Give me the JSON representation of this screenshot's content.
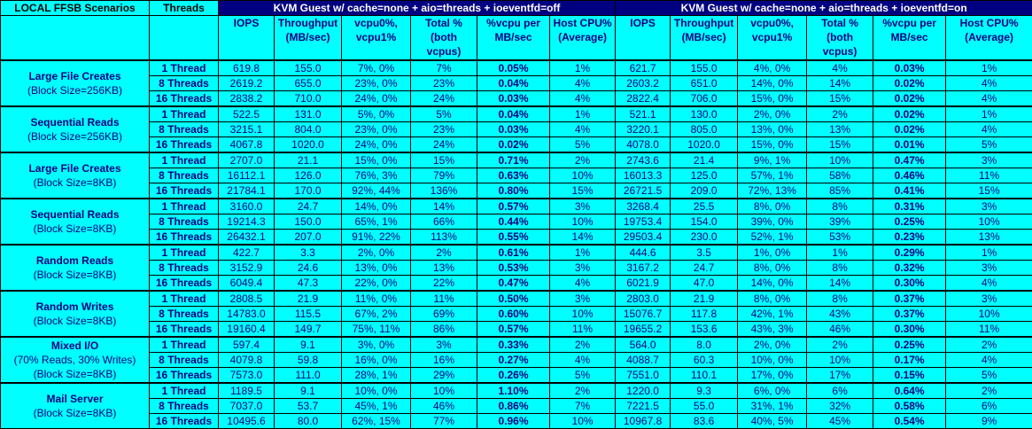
{
  "table": {
    "headers": {
      "scenarios": "LOCAL FFSB Scenarios",
      "threads": "Threads",
      "group_off": "KVM Guest w/ cache=none + aio=threads + ioeventfd=off",
      "group_on": "KVM Guest w/ cache=none + aio=threads + ioeventfd=on",
      "sub": [
        "IOPS",
        "Throughput (MB/sec)",
        "vcpu0%, vcpu1%",
        "Total % (both vcpus)",
        "%vcpu per MB/sec",
        "Host CPU% (Average)"
      ]
    },
    "scenarios": [
      {
        "name": "Large File Creates",
        "detail": [
          "(Block Size=256KB)"
        ],
        "rows": [
          {
            "threads": "1 Thread",
            "off": [
              "619.8",
              "155.0",
              "7%, 0%",
              "7%",
              "0.05%",
              "1%"
            ],
            "on": [
              "621.7",
              "155.0",
              "4%, 0%",
              "4%",
              "0.03%",
              "1%"
            ]
          },
          {
            "threads": "8 Threads",
            "off": [
              "2619.2",
              "655.0",
              "23%, 0%",
              "23%",
              "0.04%",
              "4%"
            ],
            "on": [
              "2603.2",
              "651.0",
              "14%, 0%",
              "14%",
              "0.02%",
              "4%"
            ]
          },
          {
            "threads": "16 Threads",
            "off": [
              "2838.2",
              "710.0",
              "24%, 0%",
              "24%",
              "0.03%",
              "4%"
            ],
            "on": [
              "2822.4",
              "706.0",
              "15%, 0%",
              "15%",
              "0.02%",
              "4%"
            ]
          }
        ]
      },
      {
        "name": "Sequential Reads",
        "detail": [
          "(Block Size=256KB)"
        ],
        "rows": [
          {
            "threads": "1 Thread",
            "off": [
              "522.5",
              "131.0",
              "5%, 0%",
              "5%",
              "0.04%",
              "1%"
            ],
            "on": [
              "521.1",
              "130.0",
              "2%, 0%",
              "2%",
              "0.02%",
              "1%"
            ]
          },
          {
            "threads": "8 Threads",
            "off": [
              "3215.1",
              "804.0",
              "23%, 0%",
              "23%",
              "0.03%",
              "4%"
            ],
            "on": [
              "3220.1",
              "805.0",
              "13%, 0%",
              "13%",
              "0.02%",
              "4%"
            ]
          },
          {
            "threads": "16 Threads",
            "off": [
              "4067.8",
              "1020.0",
              "24%, 0%",
              "24%",
              "0.02%",
              "5%"
            ],
            "on": [
              "4078.0",
              "1020.0",
              "15%, 0%",
              "15%",
              "0.01%",
              "5%"
            ]
          }
        ]
      },
      {
        "name": "Large File Creates",
        "detail": [
          "(Block Size=8KB)"
        ],
        "rows": [
          {
            "threads": "1 Thread",
            "off": [
              "2707.0",
              "21.1",
              "15%, 0%",
              "15%",
              "0.71%",
              "2%"
            ],
            "on": [
              "2743.6",
              "21.4",
              "9%, 1%",
              "10%",
              "0.47%",
              "3%"
            ]
          },
          {
            "threads": "8 Threads",
            "off": [
              "16112.1",
              "126.0",
              "76%, 3%",
              "79%",
              "0.63%",
              "10%"
            ],
            "on": [
              "16013.3",
              "125.0",
              "57%, 1%",
              "58%",
              "0.46%",
              "11%"
            ]
          },
          {
            "threads": "16 Threads",
            "off": [
              "21784.1",
              "170.0",
              "92%, 44%",
              "136%",
              "0.80%",
              "15%"
            ],
            "on": [
              "26721.5",
              "209.0",
              "72%, 13%",
              "85%",
              "0.41%",
              "15%"
            ]
          }
        ]
      },
      {
        "name": "Sequential Reads",
        "detail": [
          "(Block Size=8KB)"
        ],
        "rows": [
          {
            "threads": "1 Thread",
            "off": [
              "3160.0",
              "24.7",
              "14%, 0%",
              "14%",
              "0.57%",
              "3%"
            ],
            "on": [
              "3268.4",
              "25.5",
              "8%, 0%",
              "8%",
              "0.31%",
              "3%"
            ]
          },
          {
            "threads": "8 Threads",
            "off": [
              "19214.3",
              "150.0",
              "65%, 1%",
              "66%",
              "0.44%",
              "10%"
            ],
            "on": [
              "19753.4",
              "154.0",
              "39%, 0%",
              "39%",
              "0.25%",
              "10%"
            ]
          },
          {
            "threads": "16 Threads",
            "off": [
              "26432.1",
              "207.0",
              "91%, 22%",
              "113%",
              "0.55%",
              "14%"
            ],
            "on": [
              "29503.4",
              "230.0",
              "52%, 1%",
              "53%",
              "0.23%",
              "13%"
            ]
          }
        ]
      },
      {
        "name": "Random Reads",
        "detail": [
          "(Block Size=8KB)"
        ],
        "rows": [
          {
            "threads": "1 Thread",
            "off": [
              "422.7",
              "3.3",
              "2%, 0%",
              "2%",
              "0.61%",
              "1%"
            ],
            "on": [
              "444.6",
              "3.5",
              "1%, 0%",
              "1%",
              "0.29%",
              "1%"
            ]
          },
          {
            "threads": "8 Threads",
            "off": [
              "3152.9",
              "24.6",
              "13%, 0%",
              "13%",
              "0.53%",
              "3%"
            ],
            "on": [
              "3167.2",
              "24.7",
              "8%, 0%",
              "8%",
              "0.32%",
              "3%"
            ]
          },
          {
            "threads": "16 Threads",
            "off": [
              "6049.4",
              "47.3",
              "22%, 0%",
              "22%",
              "0.47%",
              "4%"
            ],
            "on": [
              "6021.9",
              "47.0",
              "14%, 0%",
              "14%",
              "0.30%",
              "4%"
            ]
          }
        ]
      },
      {
        "name": "Random Writes",
        "detail": [
          "(Block Size=8KB)"
        ],
        "rows": [
          {
            "threads": "1 Thread",
            "off": [
              "2808.5",
              "21.9",
              "11%, 0%",
              "11%",
              "0.50%",
              "3%"
            ],
            "on": [
              "2803.0",
              "21.9",
              "8%, 0%",
              "8%",
              "0.37%",
              "3%"
            ]
          },
          {
            "threads": "8 Threads",
            "off": [
              "14783.0",
              "115.5",
              "67%, 2%",
              "69%",
              "0.60%",
              "10%"
            ],
            "on": [
              "15076.7",
              "117.8",
              "42%, 1%",
              "43%",
              "0.37%",
              "10%"
            ]
          },
          {
            "threads": "16 Threads",
            "off": [
              "19160.4",
              "149.7",
              "75%, 11%",
              "86%",
              "0.57%",
              "11%"
            ],
            "on": [
              "19655.2",
              "153.6",
              "43%, 3%",
              "46%",
              "0.30%",
              "11%"
            ]
          }
        ]
      },
      {
        "name": "Mixed I/O",
        "detail": [
          "(70% Reads, 30% Writes)",
          "(Block Size=8KB)"
        ],
        "rows": [
          {
            "threads": "1 Thread",
            "off": [
              "597.4",
              "9.1",
              "3%, 0%",
              "3%",
              "0.33%",
              "2%"
            ],
            "on": [
              "564.0",
              "8.0",
              "2%, 0%",
              "2%",
              "0.25%",
              "2%"
            ]
          },
          {
            "threads": "8 Threads",
            "off": [
              "4079.8",
              "59.8",
              "16%, 0%",
              "16%",
              "0.27%",
              "4%"
            ],
            "on": [
              "4088.7",
              "60.3",
              "10%, 0%",
              "10%",
              "0.17%",
              "4%"
            ]
          },
          {
            "threads": "16 Threads",
            "off": [
              "7573.0",
              "111.0",
              "28%, 1%",
              "29%",
              "0.26%",
              "5%"
            ],
            "on": [
              "7551.0",
              "110.1",
              "17%, 0%",
              "17%",
              "0.15%",
              "5%"
            ]
          }
        ]
      },
      {
        "name": "Mail Server",
        "detail": [
          "(Block Size=8KB)"
        ],
        "rows": [
          {
            "threads": "1 Thread",
            "off": [
              "1189.5",
              "9.1",
              "10%, 0%",
              "10%",
              "1.10%",
              "2%"
            ],
            "on": [
              "1220.0",
              "9.3",
              "6%, 0%",
              "6%",
              "0.64%",
              "2%"
            ]
          },
          {
            "threads": "8 Threads",
            "off": [
              "7037.0",
              "53.7",
              "45%, 1%",
              "46%",
              "0.86%",
              "7%"
            ],
            "on": [
              "7221.5",
              "55.0",
              "31%, 1%",
              "32%",
              "0.58%",
              "6%"
            ]
          },
          {
            "threads": "16 Threads",
            "off": [
              "10495.6",
              "80.0",
              "62%, 15%",
              "77%",
              "0.96%",
              "10%"
            ],
            "on": [
              "10967.8",
              "83.6",
              "40%, 5%",
              "45%",
              "0.54%",
              "9%"
            ]
          }
        ]
      }
    ]
  }
}
